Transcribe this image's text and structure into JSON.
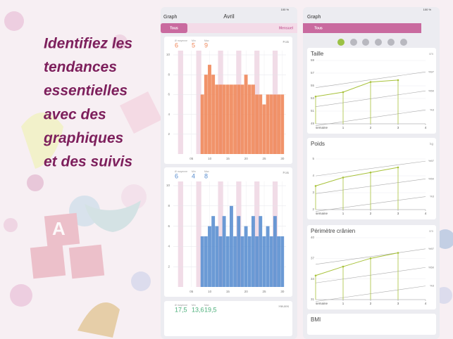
{
  "headline": [
    "Identifiez les",
    "tendances",
    "essentielles",
    "avec des",
    "graphiques",
    "et des suivis"
  ],
  "left_screen": {
    "status": "100 %",
    "title": "Graph",
    "month": "Avril",
    "tabs": [
      "Tous",
      "Mensuel"
    ],
    "charts": [
      {
        "type": "bar",
        "color": "#f0875a",
        "unit": "Fois",
        "stats": [
          {
            "label": "Ø moyenne",
            "value": 6
          },
          {
            "label": "Min",
            "value": 5
          },
          {
            "label": "Max",
            "value": 9
          }
        ],
        "x": [
          8,
          9,
          10,
          11,
          12,
          13,
          14,
          15,
          16,
          17,
          18,
          19,
          20,
          21,
          22,
          23,
          24,
          25,
          26,
          27,
          28,
          29,
          30
        ],
        "values": [
          6,
          8,
          9,
          8,
          7,
          7,
          7,
          7,
          7,
          7,
          7,
          7,
          8,
          7,
          7,
          6,
          6,
          5,
          6,
          6,
          6,
          6,
          6
        ],
        "weekend_days": [
          2,
          7,
          13,
          18,
          23,
          28
        ],
        "xlim": [
          0,
          31
        ],
        "xticks": [
          {
            "value": 5,
            "label": "05"
          },
          10,
          15,
          20,
          25,
          30
        ],
        "ylim": [
          0,
          10
        ],
        "yticks": [
          2,
          4,
          6,
          8,
          10
        ]
      },
      {
        "type": "bar",
        "color": "#5b8fd0",
        "unit": "Fois",
        "stats": [
          {
            "label": "Ø moyenne",
            "value": 6
          },
          {
            "label": "Min",
            "value": 4
          },
          {
            "label": "Max",
            "value": 8
          }
        ],
        "x": [
          8,
          9,
          10,
          11,
          12,
          13,
          14,
          15,
          16,
          17,
          18,
          19,
          20,
          21,
          22,
          23,
          24,
          25,
          26,
          27,
          28,
          29,
          30
        ],
        "values": [
          5,
          5,
          6,
          7,
          6,
          5,
          7,
          5,
          8,
          5,
          7,
          5,
          6,
          5,
          7,
          5,
          7,
          5,
          6,
          5,
          7,
          5,
          5
        ],
        "weekend_days": [
          2,
          7,
          13,
          18,
          23,
          28
        ],
        "xlim": [
          0,
          31
        ],
        "xticks": [
          {
            "value": 5,
            "label": "05"
          },
          10,
          15,
          20,
          25,
          30
        ],
        "ylim": [
          0,
          10
        ],
        "yticks": [
          2,
          4,
          6,
          8,
          10
        ]
      },
      {
        "color": "#4caf7a",
        "unit": "Heures",
        "stats": [
          {
            "label": "Ø moyenne",
            "value": 17.5,
            "value_label": "17,5"
          },
          {
            "label": "Min",
            "value": 13.6,
            "value_label": "13,6"
          },
          {
            "label": "Max",
            "value": 19.5,
            "value_label": "19,5"
          }
        ]
      }
    ]
  },
  "right_screen": {
    "status": "100 %",
    "title": "Graph",
    "tabs": [
      "Tous"
    ],
    "charts": [
      {
        "type": "line",
        "title": "Taille",
        "unit": "cm",
        "x": [
          0,
          1,
          2,
          3
        ],
        "values": [
          53.3,
          54.0,
          55.6,
          55.9
        ],
        "xlim": [
          0,
          4
        ],
        "xticks": [
          1,
          2,
          3,
          4
        ],
        "x_label": "semaine",
        "ylim": [
          49,
          59
        ],
        "yticks": [
          49,
          51,
          53,
          55,
          57,
          59
        ],
        "percentile_labels": [
          "%97",
          "%50",
          "%3"
        ]
      },
      {
        "type": "line",
        "title": "Poids",
        "unit": "kg",
        "x": [
          0,
          1,
          2,
          3
        ],
        "values": [
          3.4,
          3.9,
          4.2,
          4.5
        ],
        "xlim": [
          0,
          4
        ],
        "xticks": [
          1,
          2,
          3,
          4
        ],
        "x_label": "semaine",
        "ylim": [
          2,
          5.5
        ],
        "yticks": [
          2,
          3,
          4,
          5
        ],
        "percentile_labels": [
          "%97",
          "%50",
          "%3"
        ]
      },
      {
        "type": "line",
        "title": "Périmètre crânien",
        "unit": "cm",
        "x": [
          0,
          1,
          2,
          3
        ],
        "values": [
          34.5,
          35.8,
          37,
          37.8
        ],
        "xlim": [
          0,
          4
        ],
        "xticks": [
          1,
          2,
          3,
          4
        ],
        "x_label": "semaine",
        "ylim": [
          31,
          40
        ],
        "yticks": [
          31,
          34,
          37,
          40
        ],
        "percentile_labels": [
          "%97",
          "%50",
          "%3"
        ]
      },
      {
        "title": "BMI"
      }
    ]
  }
}
